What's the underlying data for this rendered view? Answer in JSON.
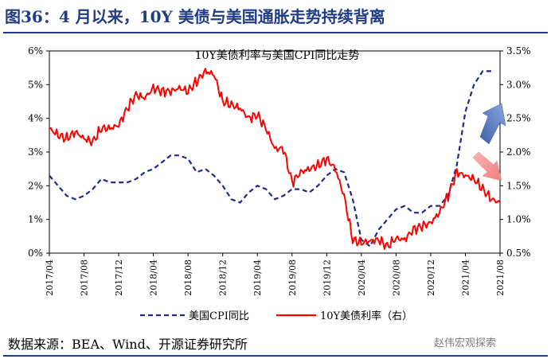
{
  "figure_title": "图36：4 月以来，10Y 美债与美国通胀走势持续背离",
  "source_note": "数据来源：BEA、Wind、开源证券研究所",
  "watermark": "赵伟宏观探索",
  "colors": {
    "title": "#1f3c86",
    "cpi": "#1f2a8a",
    "bond": "#ff0000",
    "up_arrow": "#5b7fc4",
    "down_arrow": "#f39a9a"
  },
  "chart_data": {
    "type": "line",
    "title": "10Y美债利率与美国CPI同比走势",
    "x_ticks": [
      "2017/04",
      "2017/08",
      "2017/12",
      "2018/04",
      "2018/08",
      "2018/12",
      "2019/04",
      "2019/08",
      "2019/12",
      "2020/04",
      "2020/08",
      "2020/12",
      "2021/04",
      "2021/08"
    ],
    "left_axis": {
      "ylim": [
        0,
        6
      ],
      "ticks": [
        "0%",
        "1%",
        "2%",
        "3%",
        "4%",
        "5%",
        "6%"
      ]
    },
    "right_axis": {
      "ylim": [
        0.5,
        3.5
      ],
      "ticks": [
        "0.5%",
        "1.0%",
        "1.5%",
        "2.0%",
        "2.5%",
        "3.0%",
        "3.5%"
      ]
    },
    "legend_position": "bottom",
    "series": [
      {
        "name": "美国CPI同比",
        "axis": "left",
        "style": "dashed",
        "x": [
          "2017/04",
          "2017/05",
          "2017/06",
          "2017/07",
          "2017/08",
          "2017/09",
          "2017/10",
          "2017/11",
          "2017/12",
          "2018/01",
          "2018/02",
          "2018/03",
          "2018/04",
          "2018/05",
          "2018/06",
          "2018/07",
          "2018/08",
          "2018/09",
          "2018/10",
          "2018/11",
          "2018/12",
          "2019/01",
          "2019/02",
          "2019/03",
          "2019/04",
          "2019/05",
          "2019/06",
          "2019/07",
          "2019/08",
          "2019/09",
          "2019/10",
          "2019/11",
          "2019/12",
          "2020/01",
          "2020/02",
          "2020/03",
          "2020/04",
          "2020/05",
          "2020/06",
          "2020/07",
          "2020/08",
          "2020/09",
          "2020/10",
          "2020/11",
          "2020/12",
          "2021/01",
          "2021/02",
          "2021/03",
          "2021/04",
          "2021/05",
          "2021/06",
          "2021/07"
        ],
        "values": [
          2.3,
          2.0,
          1.7,
          1.6,
          1.7,
          1.9,
          2.2,
          2.1,
          2.1,
          2.1,
          2.2,
          2.4,
          2.5,
          2.7,
          2.9,
          2.9,
          2.8,
          2.4,
          2.5,
          2.3,
          2.0,
          1.6,
          1.5,
          1.8,
          2.0,
          1.9,
          1.6,
          1.7,
          1.9,
          1.9,
          1.8,
          2.0,
          2.3,
          2.5,
          2.4,
          1.6,
          0.4,
          0.2,
          0.7,
          1.0,
          1.3,
          1.4,
          1.2,
          1.2,
          1.4,
          1.4,
          1.7,
          2.6,
          4.2,
          5.0,
          5.4,
          5.4
        ]
      },
      {
        "name": "10Y美债利率（右）",
        "axis": "right",
        "style": "solid",
        "x": [
          "2017/04",
          "2017/05",
          "2017/06",
          "2017/07",
          "2017/08",
          "2017/09",
          "2017/10",
          "2017/11",
          "2017/12",
          "2018/01",
          "2018/02",
          "2018/03",
          "2018/04",
          "2018/05",
          "2018/06",
          "2018/07",
          "2018/08",
          "2018/09",
          "2018/10",
          "2018/11",
          "2018/12",
          "2019/01",
          "2019/02",
          "2019/03",
          "2019/04",
          "2019/05",
          "2019/06",
          "2019/07",
          "2019/08",
          "2019/09",
          "2019/10",
          "2019/11",
          "2019/12",
          "2020/01",
          "2020/02",
          "2020/03",
          "2020/04",
          "2020/05",
          "2020/06",
          "2020/07",
          "2020/08",
          "2020/09",
          "2020/10",
          "2020/11",
          "2020/12",
          "2021/01",
          "2021/02",
          "2021/03",
          "2021/04",
          "2021/05",
          "2021/06",
          "2021/07",
          "2021/08"
        ],
        "values": [
          2.35,
          2.25,
          2.2,
          2.3,
          2.2,
          2.15,
          2.35,
          2.35,
          2.4,
          2.65,
          2.85,
          2.8,
          2.95,
          2.9,
          2.9,
          2.95,
          2.9,
          3.05,
          3.2,
          3.15,
          2.75,
          2.7,
          2.65,
          2.5,
          2.55,
          2.35,
          2.05,
          2.05,
          1.55,
          1.7,
          1.75,
          1.8,
          1.9,
          1.75,
          1.35,
          0.7,
          0.65,
          0.68,
          0.7,
          0.6,
          0.72,
          0.7,
          0.85,
          0.9,
          0.95,
          1.1,
          1.35,
          1.7,
          1.65,
          1.6,
          1.45,
          1.3,
          1.25
        ]
      }
    ],
    "annotations": [
      {
        "type": "arrow",
        "direction": "up",
        "series": "美国CPI同比"
      },
      {
        "type": "arrow",
        "direction": "down",
        "series": "10Y美债利率（右）"
      }
    ]
  }
}
